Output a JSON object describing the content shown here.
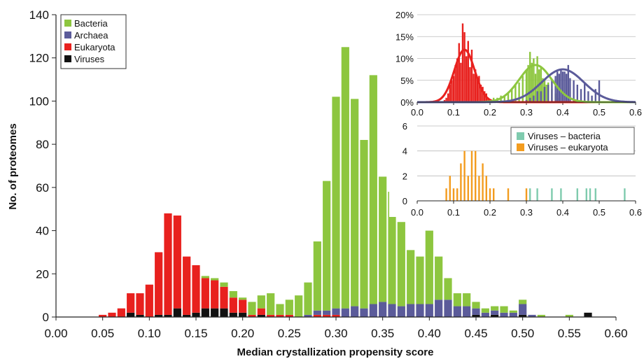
{
  "chart_data": [
    {
      "type": "bar",
      "stacked": true,
      "xlabel": "Median crystallization propensity score",
      "ylabel": "No. of proteomes",
      "xlim": [
        0.0,
        0.6
      ],
      "ylim": [
        0,
        140
      ],
      "bin_width": 0.01,
      "x_ticks": [
        "0.00",
        "0.05",
        "0.10",
        "0.15",
        "0.20",
        "0.25",
        "0.30",
        "0.35",
        "0.40",
        "0.45",
        "0.50",
        "0.55",
        "0.60"
      ],
      "y_ticks": [
        "0",
        "20",
        "40",
        "60",
        "80",
        "100",
        "120",
        "140"
      ],
      "legend": {
        "position": "top-left",
        "entries": [
          "Bacteria",
          "Archaea",
          "Eukaryota",
          "Viruses"
        ]
      },
      "colors": {
        "Bacteria": "#8dc63f",
        "Archaea": "#5b5b9a",
        "Eukaryota": "#e8211e",
        "Viruses": "#111111"
      },
      "x": [
        0.05,
        0.06,
        0.07,
        0.08,
        0.09,
        0.1,
        0.11,
        0.12,
        0.13,
        0.14,
        0.15,
        0.16,
        0.17,
        0.18,
        0.19,
        0.2,
        0.21,
        0.22,
        0.23,
        0.24,
        0.25,
        0.26,
        0.27,
        0.28,
        0.29,
        0.3,
        0.31,
        0.32,
        0.33,
        0.34,
        0.35,
        0.36,
        0.37,
        0.38,
        0.39,
        0.4,
        0.41,
        0.42,
        0.43,
        0.44,
        0.45,
        0.46,
        0.47,
        0.48,
        0.49,
        0.5,
        0.51,
        0.52,
        0.53,
        0.54,
        0.55,
        0.56,
        0.57
      ],
      "series": [
        {
          "name": "Viruses",
          "values": [
            0,
            0,
            0,
            2,
            1,
            0,
            1,
            1,
            4,
            1,
            2,
            4,
            4,
            4,
            2,
            2,
            0,
            1,
            0,
            0,
            0,
            0,
            0,
            0,
            0,
            0,
            0,
            0,
            0,
            0,
            0,
            0,
            0,
            0,
            0,
            0,
            0,
            0,
            0,
            0,
            1,
            0,
            1,
            0,
            0,
            1,
            0,
            0,
            0,
            0,
            0,
            0,
            2
          ]
        },
        {
          "name": "Eukaryota",
          "values": [
            1,
            2,
            4,
            9,
            10,
            15,
            29,
            47,
            43,
            27,
            22,
            14,
            13,
            10,
            7,
            6,
            1,
            3,
            1,
            1,
            1,
            0,
            0,
            1,
            1,
            1,
            0,
            0,
            0,
            0,
            0,
            0,
            0,
            0,
            0,
            0,
            0,
            0,
            0,
            0,
            0,
            0,
            0,
            0,
            0,
            0,
            0,
            0,
            0,
            0,
            0,
            0,
            0
          ]
        },
        {
          "name": "Archaea",
          "values": [
            0,
            0,
            0,
            0,
            0,
            0,
            0,
            0,
            0,
            0,
            0,
            0,
            0,
            0,
            0,
            0,
            0,
            0,
            0,
            0,
            0,
            0,
            1,
            2,
            2,
            3,
            4,
            5,
            4,
            6,
            7,
            6,
            5,
            6,
            6,
            6,
            8,
            8,
            5,
            5,
            3,
            2,
            2,
            2,
            2,
            5,
            1,
            0,
            0,
            0,
            0,
            0,
            0
          ]
        },
        {
          "name": "Bacteria",
          "values": [
            0,
            0,
            0,
            0,
            0,
            0,
            0,
            0,
            0,
            0,
            0,
            1,
            1,
            2,
            3,
            1,
            6,
            6,
            10,
            5,
            7,
            10,
            15,
            32,
            60,
            98,
            121,
            96,
            78,
            106,
            58,
            52,
            39,
            25,
            22,
            34,
            20,
            10,
            6,
            6,
            3,
            2,
            2,
            3,
            1,
            2,
            0,
            1,
            0,
            0,
            1,
            0,
            0
          ]
        }
      ]
    },
    {
      "type": "bar",
      "inset": "top-right",
      "xlim": [
        0.0,
        0.6
      ],
      "ylim": [
        0,
        20
      ],
      "x_ticks": [
        "0.0",
        "0.1",
        "0.2",
        "0.3",
        "0.4",
        "0.5",
        "0.6"
      ],
      "y_ticks": [
        "0%",
        "5%",
        "10%",
        "15%",
        "20%"
      ],
      "colors": {
        "Eukaryota": "#e8211e",
        "Bacteria": "#8dc63f",
        "Archaea": "#5b5b9a"
      },
      "series": [
        {
          "name": "Eukaryota",
          "x": [
            0.075,
            0.08,
            0.085,
            0.09,
            0.095,
            0.1,
            0.105,
            0.11,
            0.115,
            0.12,
            0.125,
            0.13,
            0.135,
            0.14,
            0.145,
            0.15,
            0.155,
            0.16,
            0.165,
            0.17,
            0.175,
            0.18,
            0.185,
            0.19,
            0.195,
            0.2
          ],
          "values": [
            0.5,
            1.0,
            2.0,
            4.0,
            5.0,
            6.0,
            8.5,
            10.0,
            13.5,
            9.0,
            18.0,
            16.0,
            10.5,
            14.0,
            8.0,
            12.0,
            6.5,
            7.5,
            5.5,
            6.0,
            4.0,
            3.5,
            2.5,
            2.0,
            1.0,
            0.5
          ],
          "fit": {
            "mean": 0.13,
            "sd": 0.028,
            "peak": 12.0
          }
        },
        {
          "name": "Bacteria",
          "x": [
            0.2,
            0.21,
            0.22,
            0.23,
            0.24,
            0.25,
            0.26,
            0.27,
            0.28,
            0.29,
            0.3,
            0.305,
            0.31,
            0.315,
            0.32,
            0.325,
            0.33,
            0.335,
            0.34,
            0.345,
            0.35,
            0.355,
            0.36,
            0.37,
            0.38,
            0.39
          ],
          "values": [
            0.5,
            1.0,
            1.0,
            1.5,
            1.5,
            2.0,
            3.0,
            4.0,
            4.5,
            6.0,
            7.5,
            8.5,
            11.5,
            9.0,
            10.0,
            6.5,
            10.5,
            7.5,
            8.0,
            5.5,
            5.0,
            4.0,
            4.5,
            3.0,
            2.0,
            1.0
          ],
          "fit": {
            "mean": 0.325,
            "sd": 0.045,
            "peak": 8.5
          }
        },
        {
          "name": "Archaea",
          "x": [
            0.3,
            0.31,
            0.32,
            0.33,
            0.34,
            0.35,
            0.36,
            0.37,
            0.38,
            0.385,
            0.39,
            0.395,
            0.4,
            0.405,
            0.41,
            0.415,
            0.42,
            0.43,
            0.44,
            0.45,
            0.46,
            0.47,
            0.48,
            0.49,
            0.5
          ],
          "values": [
            0.5,
            1.0,
            1.5,
            2.5,
            2.5,
            3.5,
            4.0,
            5.0,
            6.0,
            7.0,
            6.5,
            7.5,
            7.0,
            7.0,
            6.5,
            8.5,
            5.5,
            5.0,
            4.0,
            3.0,
            4.5,
            2.5,
            1.5,
            3.0,
            5.0
          ],
          "fit": {
            "mean": 0.4,
            "sd": 0.058,
            "peak": 7.5
          }
        }
      ]
    },
    {
      "type": "bar",
      "inset": "middle-right",
      "xlim": [
        0.0,
        0.6
      ],
      "ylim": [
        0,
        6
      ],
      "x_ticks": [
        "0.0",
        "0.1",
        "0.2",
        "0.3",
        "0.4",
        "0.5",
        "0.6"
      ],
      "y_ticks": [
        "0",
        "2",
        "4",
        "6"
      ],
      "legend": {
        "position": "top-right",
        "entries": [
          "Viruses – bacteria",
          "Viruses – eukaryota"
        ]
      },
      "colors": {
        "Viruses – bacteria": "#7fcbae",
        "Viruses – eukaryota": "#f39c1f"
      },
      "series": [
        {
          "name": "Viruses – eukaryota",
          "x": [
            0.08,
            0.09,
            0.1,
            0.11,
            0.12,
            0.13,
            0.14,
            0.15,
            0.16,
            0.17,
            0.18,
            0.19,
            0.2,
            0.21,
            0.25,
            0.3
          ],
          "values": [
            1,
            2,
            1,
            1,
            3,
            4,
            2,
            4,
            4,
            2,
            3,
            2,
            1,
            1,
            1,
            1
          ]
        },
        {
          "name": "Viruses – bacteria",
          "x": [
            0.31,
            0.33,
            0.37,
            0.395,
            0.44,
            0.465,
            0.475,
            0.49,
            0.57
          ],
          "values": [
            1,
            1,
            1,
            1,
            1,
            1,
            1,
            1,
            1
          ]
        }
      ]
    }
  ]
}
